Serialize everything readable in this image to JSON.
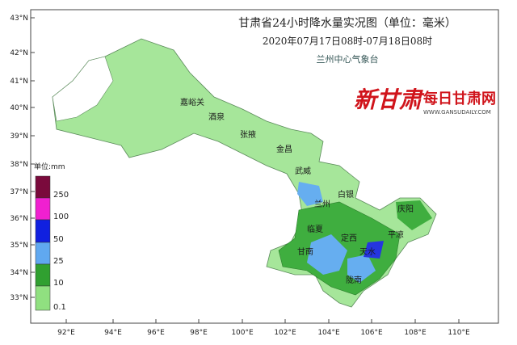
{
  "header": {
    "title": "甘肃省24小时降水量实况图（单位：毫米）",
    "date_range": "2020年07月17日08时-07月18日08时",
    "issuer": "兰州中心气象台"
  },
  "logo": {
    "brand": "新甘肃",
    "site": "每日甘肃网",
    "url": "WWW.GANSUDAILY.COM"
  },
  "legend": {
    "unit": "单位:mm",
    "items": [
      "250",
      "100",
      "50",
      "25",
      "10",
      "0.1"
    ]
  },
  "lat_labels": [
    "43°N",
    "42°N",
    "41°N",
    "40°N",
    "39°N",
    "38°N",
    "37°N",
    "36°N",
    "35°N",
    "34°N",
    "33°N"
  ],
  "lon_labels": [
    "92°E",
    "94°E",
    "96°E",
    "98°E",
    "100°E",
    "102°E",
    "104°E",
    "106°E",
    "108°E",
    "110°E"
  ],
  "cities": [
    "嘉峪关",
    "酒泉",
    "张掖",
    "金昌",
    "武威",
    "白银",
    "兰州",
    "临夏",
    "定西",
    "庆阳",
    "平凉",
    "甘南",
    "天水",
    "陇南"
  ]
}
